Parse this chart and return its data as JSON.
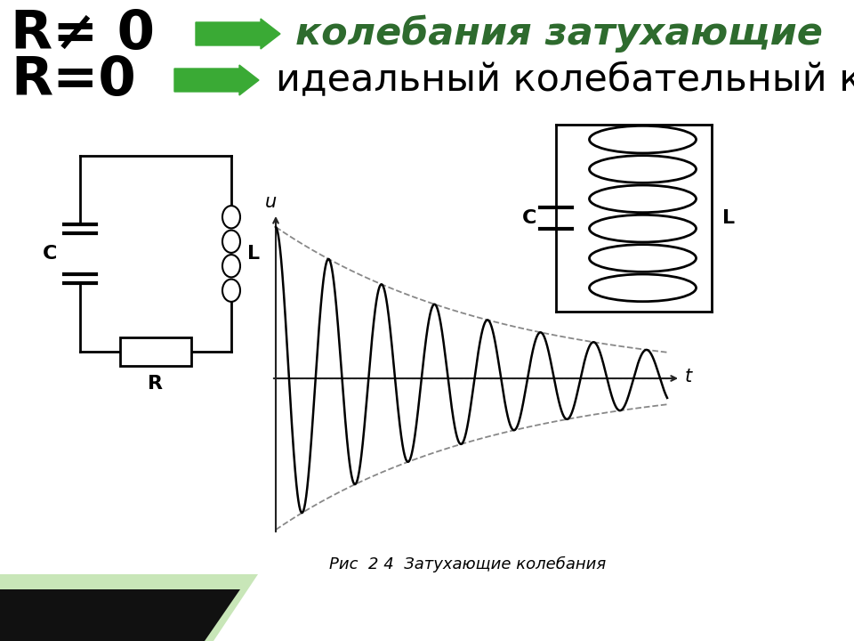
{
  "bg_color": "#ffffff",
  "line1_bold": "R≠ 0",
  "line1_italic": "колебания затухающие",
  "line2_bold": "R=0",
  "line2_normal": "идеальный колебательный контур",
  "arrow_color": "#3aaa35",
  "text_bold_color": "#000000",
  "text_italic_color": "#2e6b2e",
  "caption": "Рис  2 4  Затухающие колебания",
  "damping": 0.22,
  "omega": 5.8,
  "t_max": 8.0,
  "graph_line_color": "#000000",
  "envelope_color": "#888888",
  "axis_color": "#222222",
  "green_strip_color": "#c8e6b8",
  "black_strip_color": "#111111"
}
